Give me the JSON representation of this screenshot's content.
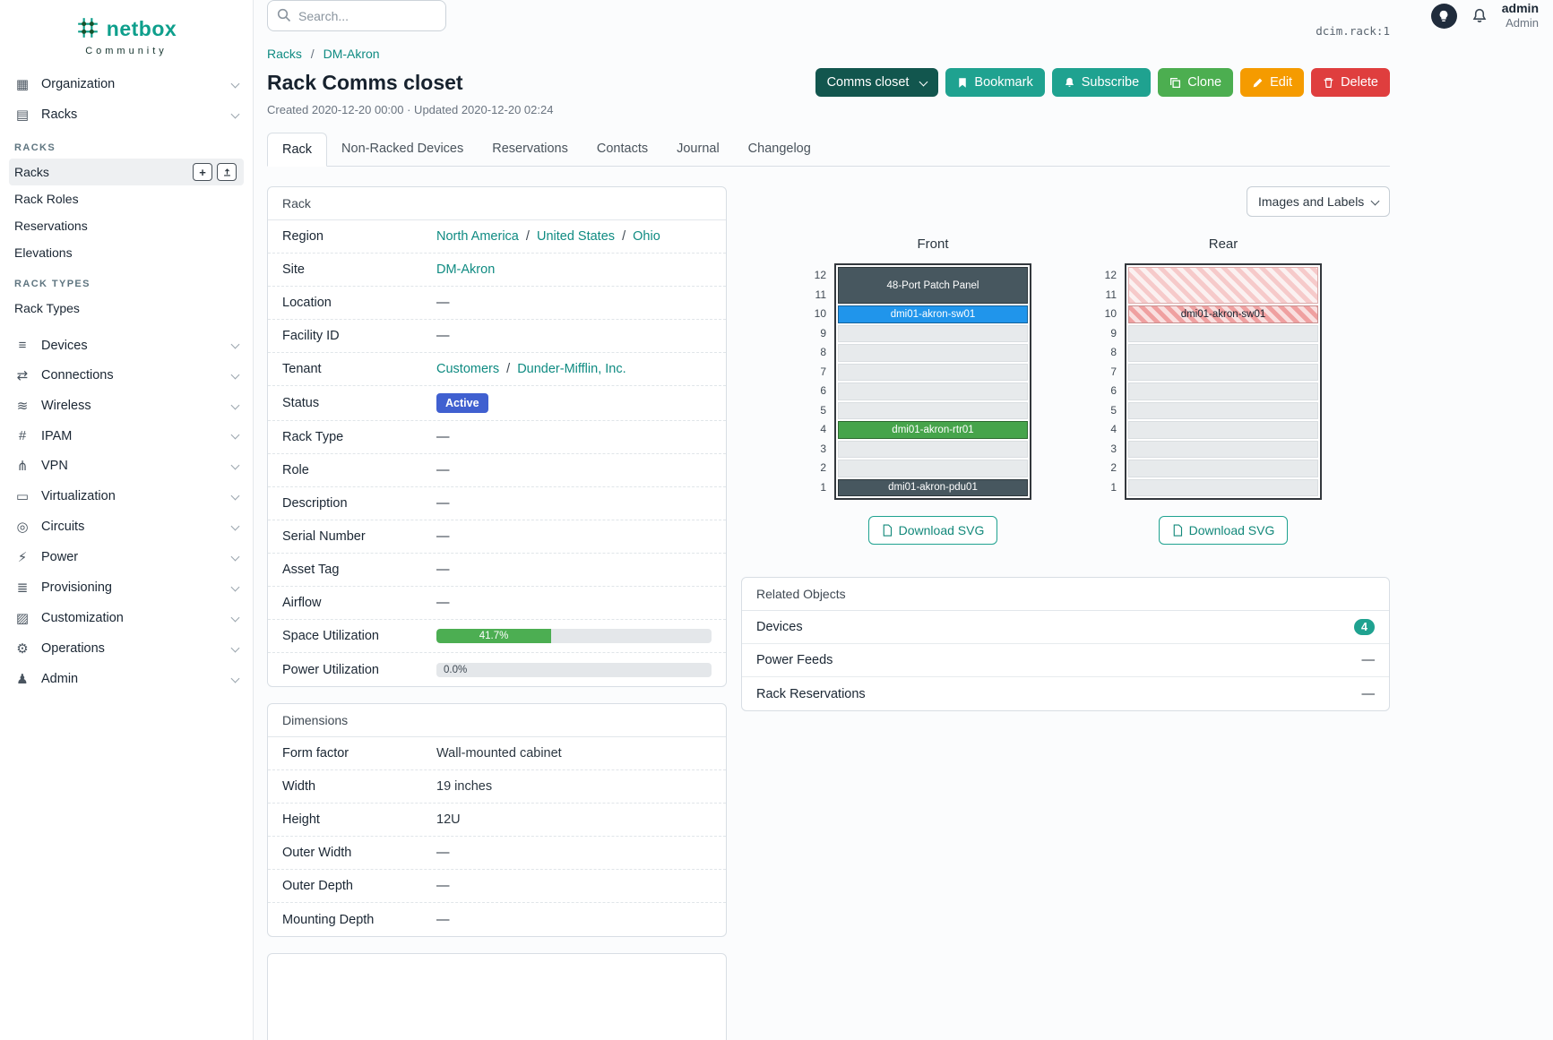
{
  "sep": "/",
  "brand": {
    "name": "netbox",
    "subtitle": "Community"
  },
  "topbar": {
    "search_placeholder": "Search...",
    "user_name": "admin",
    "user_role": "Admin"
  },
  "icons": {
    "organization": "▦",
    "racks": "▤",
    "devices": "≡",
    "connections": "⇄",
    "wireless": "≋",
    "ipam": "#",
    "vpn": "⋔",
    "virtualization": "▭",
    "circuits": "◎",
    "power": "⚡",
    "provisioning": "≣",
    "customization": "▨",
    "operations": "⚙",
    "admin": "♟",
    "plus": "+"
  },
  "sidebar": {
    "organization": "Organization",
    "racks": "Racks",
    "groups": [
      {
        "heading": "RACKS",
        "links": [
          "Racks",
          "Rack Roles",
          "Reservations",
          "Elevations"
        ]
      },
      {
        "heading": "RACK TYPES",
        "links": [
          "Rack Types"
        ]
      }
    ],
    "items": [
      "Devices",
      "Connections",
      "Wireless",
      "IPAM",
      "VPN",
      "Virtualization",
      "Circuits",
      "Power",
      "Provisioning",
      "Customization",
      "Operations",
      "Admin"
    ]
  },
  "page": {
    "object_id": "dcim.rack:1",
    "breadcrumb": [
      "Racks",
      "DM-Akron"
    ],
    "title": "Rack Comms closet",
    "meta": "Created 2020-12-20 00:00 · Updated 2020-12-20 02:24",
    "actions": {
      "group": "Comms closet",
      "bookmark": "Bookmark",
      "subscribe": "Subscribe",
      "clone": "Clone",
      "edit": "Edit",
      "delete": "Delete"
    },
    "tabs": [
      "Rack",
      "Non-Racked Devices",
      "Reservations",
      "Contacts",
      "Journal",
      "Changelog"
    ]
  },
  "rack_panel": {
    "title": "Rack",
    "labels": {
      "region": "Region",
      "site": "Site",
      "location": "Location",
      "facility_id": "Facility ID",
      "tenant": "Tenant",
      "status": "Status",
      "rack_type": "Rack Type",
      "role": "Role",
      "description": "Description",
      "serial": "Serial Number",
      "asset_tag": "Asset Tag",
      "airflow": "Airflow",
      "space_util": "Space Utilization",
      "power_util": "Power Utilization"
    },
    "values": {
      "region": [
        "North America",
        "United States",
        "Ohio"
      ],
      "site": "DM-Akron",
      "location": "—",
      "facility_id": "—",
      "tenant": [
        "Customers",
        "Dunder-Mifflin, Inc."
      ],
      "status": "Active",
      "rack_type": "—",
      "role": "—",
      "description": "—",
      "serial": "—",
      "asset_tag": "—",
      "airflow": "—",
      "space_util": "41.7%",
      "power_util": "0.0%"
    }
  },
  "dimensions_panel": {
    "title": "Dimensions",
    "rows": [
      {
        "label": "Form factor",
        "value": "Wall-mounted cabinet"
      },
      {
        "label": "Width",
        "value": "19 inches"
      },
      {
        "label": "Height",
        "value": "12U"
      },
      {
        "label": "Outer Width",
        "value": "—"
      },
      {
        "label": "Outer Depth",
        "value": "—"
      },
      {
        "label": "Mounting Depth",
        "value": "—"
      }
    ]
  },
  "elevation": {
    "view_mode": "Images and Labels",
    "front_title": "Front",
    "rear_title": "Rear",
    "units": [
      "12",
      "11",
      "10",
      "9",
      "8",
      "7",
      "6",
      "5",
      "4",
      "3",
      "2",
      "1"
    ],
    "front_devices": {
      "patch_panel": "48-Port Patch Panel",
      "switch": "dmi01-akron-sw01",
      "router": "dmi01-akron-rtr01",
      "pdu": "dmi01-akron-pdu01"
    },
    "rear_device_label": "dmi01-akron-sw01",
    "download_label": "Download SVG"
  },
  "related_panel": {
    "title": "Related Objects",
    "rows": [
      {
        "label": "Devices",
        "value": "4"
      },
      {
        "label": "Power Feeds",
        "value": "—"
      },
      {
        "label": "Rack Reservations",
        "value": "—"
      }
    ]
  },
  "colors": {
    "accent_teal": "#1fa290",
    "link_teal": "#0f8b82",
    "status_active_blue": "#4060d0",
    "device_switch_blue": "#2095eb",
    "device_router_green": "#46a44b",
    "device_panel_slate": "#47575f",
    "clone_green": "#4cae50",
    "edit_orange": "#f59b00",
    "delete_red": "#df3e3e",
    "progress_green": "#4cae52"
  }
}
